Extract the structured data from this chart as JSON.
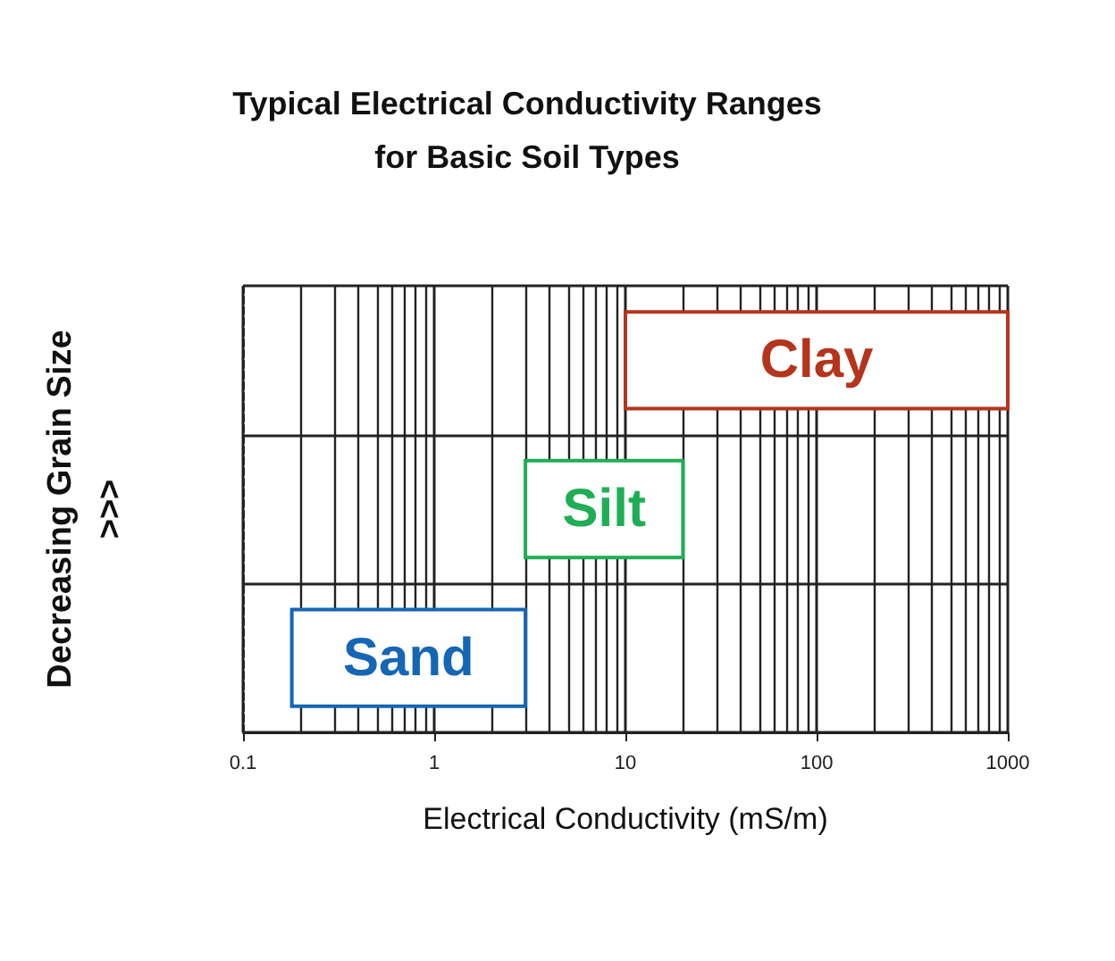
{
  "chart_data": {
    "type": "bar",
    "orientation": "horizontal",
    "title": "Typical Electrical Conductivity Ranges\nfor Basic Soil Types",
    "xlabel": "Electrical Conductivity (mS/m)",
    "ylabel": "Decreasing Grain Size\n>>>",
    "categories": [
      "Clay",
      "Silt",
      "Sand"
    ],
    "base": [
      10,
      3,
      0.18
    ],
    "values": [
      990,
      17,
      2.82
    ],
    "colors": [
      "#b5341c",
      "#1fae55",
      "#1566b4"
    ],
    "log": "x",
    "xlim": [
      0.1,
      1000
    ],
    "xticks": [
      0.1,
      1,
      10,
      100,
      1000
    ],
    "grid": true,
    "tick_labels": "x"
  }
}
